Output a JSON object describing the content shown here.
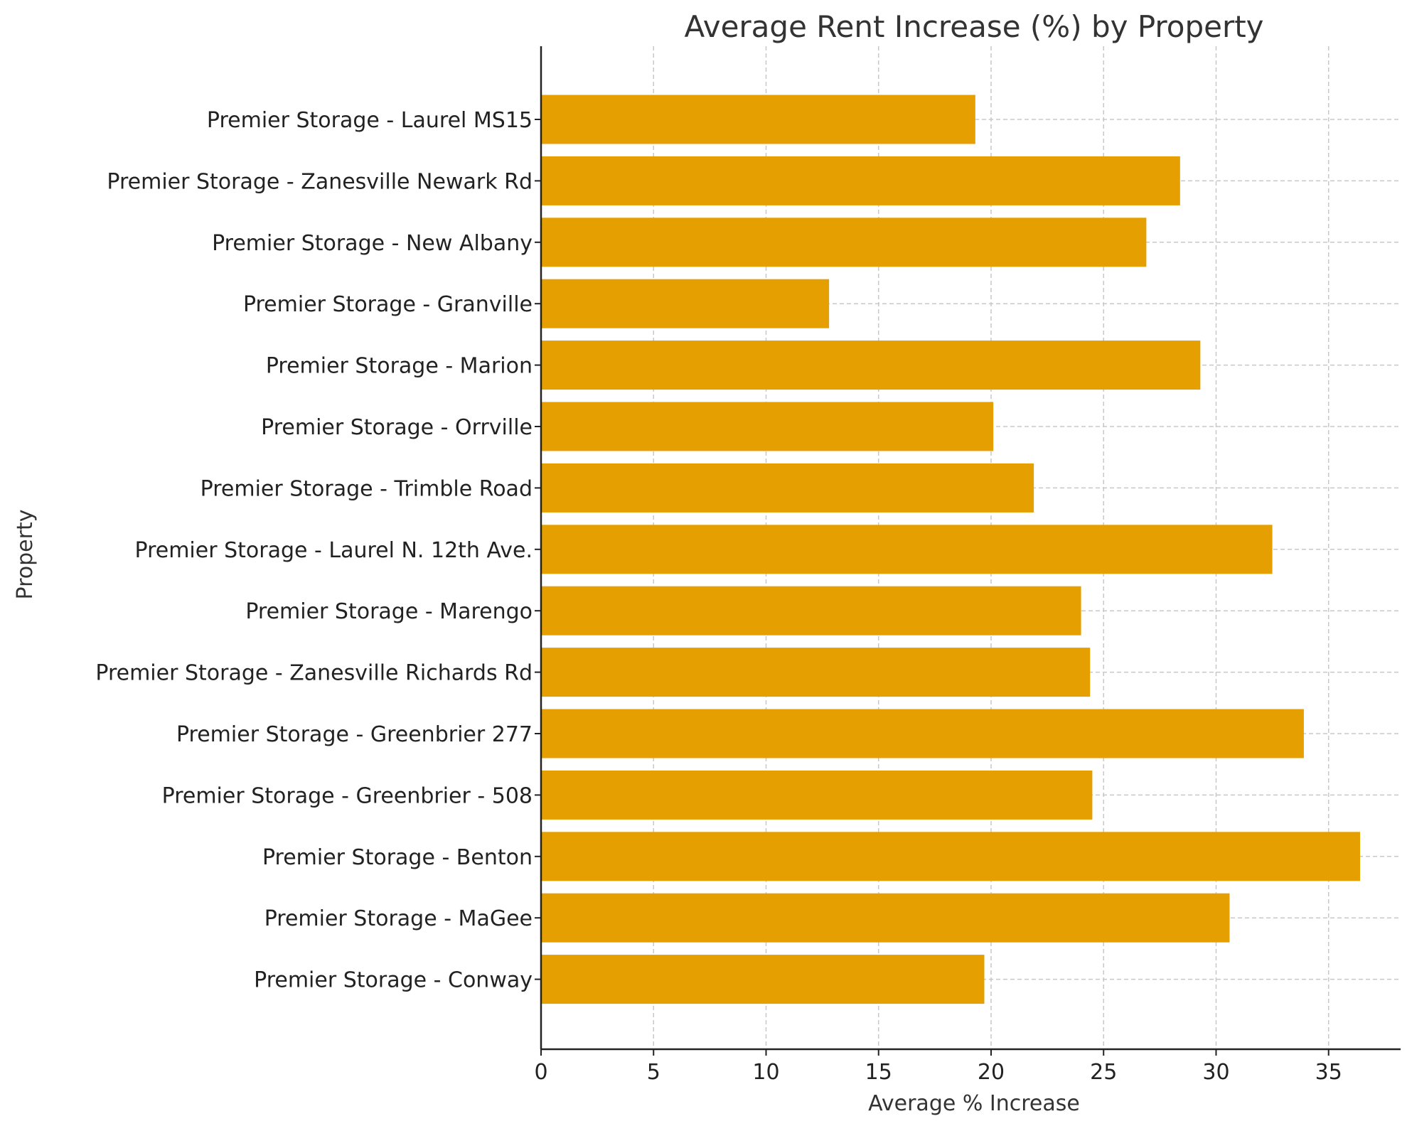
{
  "chart_data": {
    "type": "bar",
    "orientation": "horizontal",
    "title": "Average Rent Increase (%) by Property",
    "xlabel": "Average % Increase",
    "ylabel": "Property",
    "xlim": [
      0,
      38.2
    ],
    "xticks": [
      0,
      5,
      10,
      15,
      20,
      25,
      30,
      35
    ],
    "grid": true,
    "bar_color": "#E69F00",
    "categories": [
      "Premier Storage - Laurel MS15",
      "Premier Storage - Zanesville Newark Rd",
      "Premier Storage - New Albany",
      "Premier Storage - Granville",
      "Premier Storage - Marion",
      "Premier Storage - Orrville",
      "Premier Storage - Trimble Road",
      "Premier Storage - Laurel N. 12th Ave.",
      "Premier Storage - Marengo",
      "Premier Storage - Zanesville Richards Rd",
      "Premier Storage - Greenbrier 277",
      "Premier Storage - Greenbrier - 508",
      "Premier Storage - Benton",
      "Premier Storage - MaGee",
      "Premier Storage - Conway"
    ],
    "values": [
      19.3,
      28.4,
      26.9,
      12.8,
      29.3,
      20.1,
      21.9,
      32.5,
      24.0,
      24.4,
      33.9,
      24.5,
      36.4,
      30.6,
      19.7
    ]
  }
}
